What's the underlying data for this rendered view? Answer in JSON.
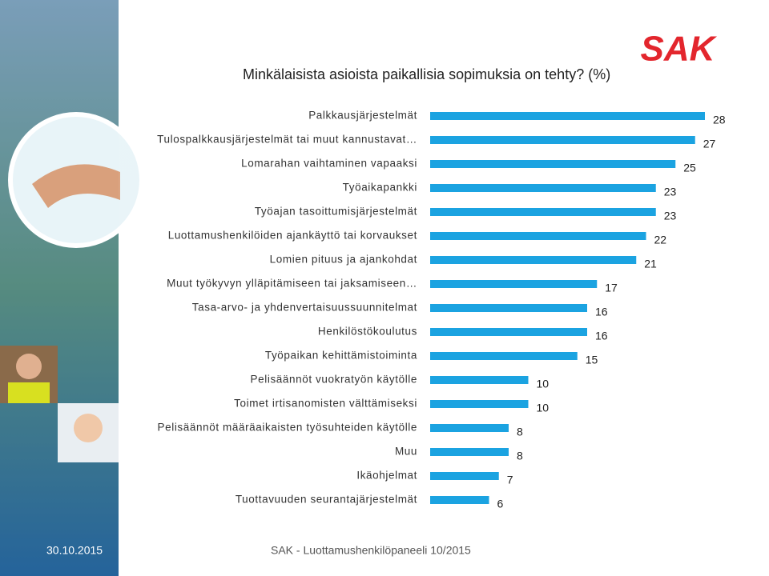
{
  "logo": "SAK",
  "chart_data": {
    "type": "bar",
    "orientation": "horizontal",
    "title": "Minkälaisista asioista paikallisia sopimuksia on tehty? (%)",
    "categories": [
      "Palkkausjärjestelmät",
      "Tulospalkkausjärjestelmät tai muut kannustavat…",
      "Lomarahan vaihtaminen vapaaksi",
      "Työaikapankki",
      "Työajan tasoittumisjärjestelmät",
      "Luottamushenkilöiden ajankäyttö tai korvaukset",
      "Lomien pituus ja ajankohdat",
      "Muut työkyvyn ylläpitämiseen tai jaksamiseen…",
      "Tasa-arvo- ja yhdenvertaisuussuunnitelmat",
      "Henkilöstökoulutus",
      "Työpaikan kehittämistoiminta",
      "Pelisäännöt vuokratyön käytölle",
      "Toimet irtisanomisten välttämiseksi",
      "Pelisäännöt määräaikaisten työsuhteiden käytölle",
      "Muu",
      "Ikäohjelmat",
      "Tuottavuuden seurantajärjestelmät"
    ],
    "values": [
      28,
      27,
      25,
      23,
      23,
      22,
      21,
      17,
      16,
      16,
      15,
      10,
      10,
      8,
      8,
      7,
      6
    ],
    "color": "#1ba3e1"
  },
  "footer": {
    "date": "30.10.2015",
    "source": "SAK - Luottamushenkilöpaneeli 10/2015"
  }
}
